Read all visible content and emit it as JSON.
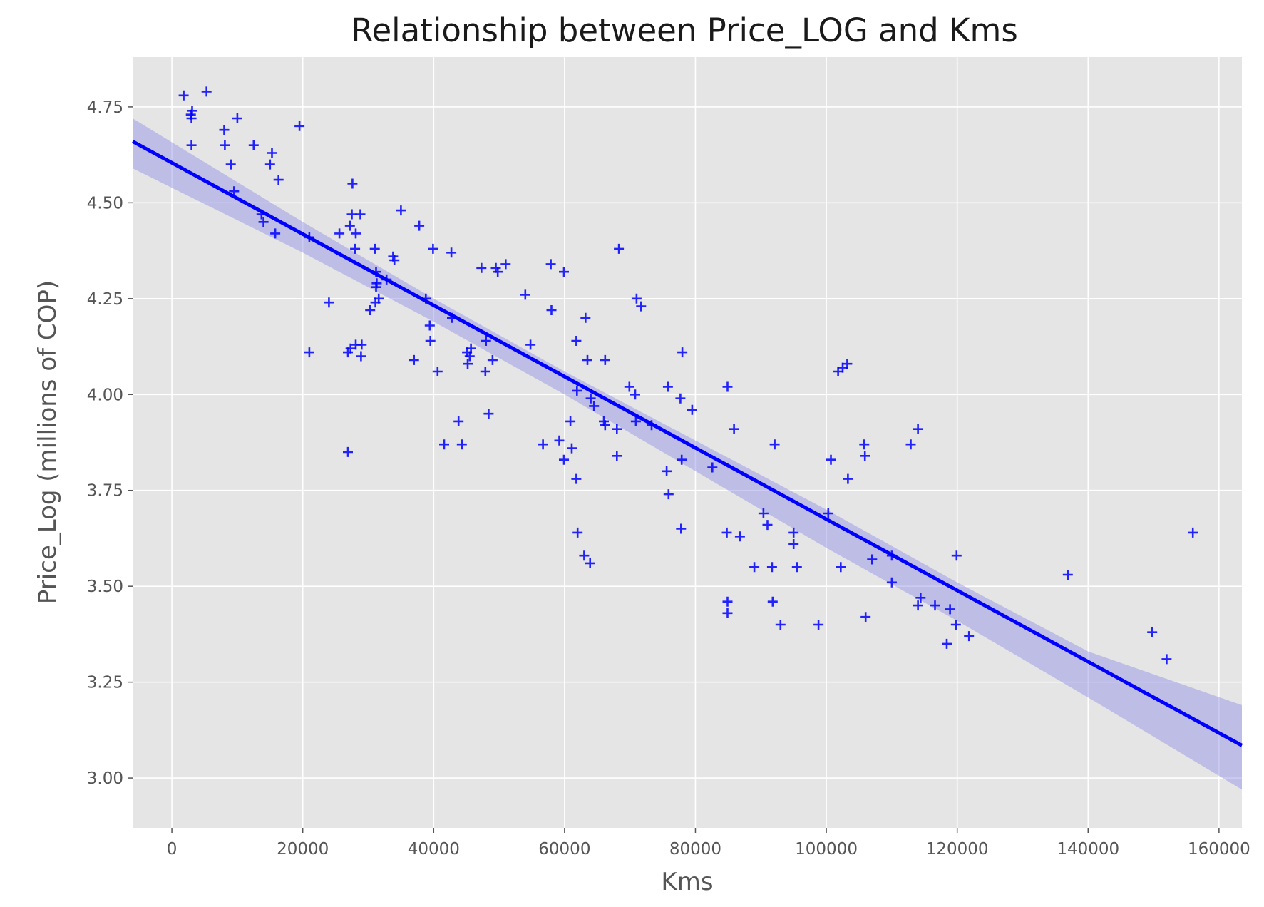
{
  "chart_data": {
    "type": "scatter",
    "title": "Relationship between Price_LOG and Kms",
    "xlabel": "Kms",
    "ylabel": "Price_Log (millions of COP)",
    "xlim": [
      -6000,
      163500
    ],
    "ylim": [
      2.87,
      4.88
    ],
    "xticks": [
      0,
      20000,
      40000,
      60000,
      80000,
      100000,
      120000,
      140000,
      160000
    ],
    "yticks": [
      3.0,
      3.25,
      3.5,
      3.75,
      4.0,
      4.25,
      4.5,
      4.75
    ],
    "grid": true,
    "marker": "+",
    "colors": {
      "points": "#0000ff",
      "line": "#0000ff",
      "band": "#8c8ce6",
      "background": "#e5e5e5",
      "grid": "#ffffff"
    },
    "regression": {
      "x": [
        -6000,
        163500
      ],
      "y": [
        4.66,
        3.085
      ]
    },
    "confidence_band": {
      "x": [
        -6000,
        20000,
        40000,
        60000,
        80000,
        100000,
        120000,
        140000,
        163500
      ],
      "lower": [
        4.59,
        4.37,
        4.19,
        4.0,
        3.8,
        3.6,
        3.41,
        3.21,
        2.97
      ],
      "upper": [
        4.72,
        4.45,
        4.25,
        4.06,
        3.88,
        3.7,
        3.51,
        3.33,
        3.19
      ]
    },
    "points": [
      [
        1800,
        4.78
      ],
      [
        5300,
        4.79
      ],
      [
        2900,
        4.73
      ],
      [
        3000,
        4.72
      ],
      [
        3100,
        4.74
      ],
      [
        3000,
        4.65
      ],
      [
        8000,
        4.69
      ],
      [
        10000,
        4.72
      ],
      [
        8100,
        4.65
      ],
      [
        9000,
        4.6
      ],
      [
        9500,
        4.53
      ],
      [
        12500,
        4.65
      ],
      [
        15300,
        4.63
      ],
      [
        15000,
        4.6
      ],
      [
        16300,
        4.56
      ],
      [
        19500,
        4.7
      ],
      [
        13700,
        4.47
      ],
      [
        14000,
        4.45
      ],
      [
        15800,
        4.42
      ],
      [
        21000,
        4.41
      ],
      [
        24000,
        4.24
      ],
      [
        21000,
        4.11
      ],
      [
        25600,
        4.42
      ],
      [
        27200,
        4.44
      ],
      [
        27600,
        4.55
      ],
      [
        27500,
        4.47
      ],
      [
        28800,
        4.47
      ],
      [
        28100,
        4.42
      ],
      [
        28000,
        4.38
      ],
      [
        26900,
        4.11
      ],
      [
        27300,
        4.12
      ],
      [
        28100,
        4.13
      ],
      [
        29000,
        4.13
      ],
      [
        28900,
        4.1
      ],
      [
        26900,
        3.85
      ],
      [
        30300,
        4.22
      ],
      [
        31100,
        4.24
      ],
      [
        31300,
        4.29
      ],
      [
        31200,
        4.28
      ],
      [
        31200,
        4.32
      ],
      [
        31000,
        4.38
      ],
      [
        31600,
        4.25
      ],
      [
        32800,
        4.3
      ],
      [
        33800,
        4.36
      ],
      [
        34000,
        4.35
      ],
      [
        35000,
        4.48
      ],
      [
        37800,
        4.44
      ],
      [
        38800,
        4.25
      ],
      [
        39400,
        4.18
      ],
      [
        39500,
        4.14
      ],
      [
        39900,
        4.38
      ],
      [
        37000,
        4.09
      ],
      [
        40600,
        4.06
      ],
      [
        42700,
        4.37
      ],
      [
        42800,
        4.2
      ],
      [
        41600,
        3.87
      ],
      [
        43800,
        3.93
      ],
      [
        44300,
        3.87
      ],
      [
        45100,
        4.11
      ],
      [
        45200,
        4.08
      ],
      [
        45500,
        4.1
      ],
      [
        45700,
        4.12
      ],
      [
        47300,
        4.33
      ],
      [
        49500,
        4.33
      ],
      [
        49800,
        4.32
      ],
      [
        51000,
        4.34
      ],
      [
        48000,
        4.14
      ],
      [
        49000,
        4.09
      ],
      [
        47900,
        4.06
      ],
      [
        48400,
        3.95
      ],
      [
        54000,
        4.26
      ],
      [
        54800,
        4.13
      ],
      [
        57900,
        4.34
      ],
      [
        59900,
        4.32
      ],
      [
        58000,
        4.22
      ],
      [
        56700,
        3.87
      ],
      [
        59200,
        3.88
      ],
      [
        59900,
        3.83
      ],
      [
        60900,
        3.93
      ],
      [
        61100,
        3.86
      ],
      [
        61800,
        4.14
      ],
      [
        61900,
        4.01
      ],
      [
        63200,
        4.2
      ],
      [
        63500,
        4.09
      ],
      [
        64000,
        3.99
      ],
      [
        64500,
        3.97
      ],
      [
        66000,
        3.93
      ],
      [
        66200,
        3.92
      ],
      [
        66200,
        4.09
      ],
      [
        61800,
        3.78
      ],
      [
        62000,
        3.64
      ],
      [
        63000,
        3.58
      ],
      [
        63900,
        3.56
      ],
      [
        68000,
        3.91
      ],
      [
        68000,
        3.84
      ],
      [
        68300,
        4.38
      ],
      [
        69900,
        4.02
      ],
      [
        70800,
        4.0
      ],
      [
        71000,
        4.25
      ],
      [
        71700,
        4.23
      ],
      [
        70900,
        3.93
      ],
      [
        73300,
        3.92
      ],
      [
        75600,
        3.8
      ],
      [
        75800,
        4.02
      ],
      [
        75900,
        3.74
      ],
      [
        77700,
        3.99
      ],
      [
        78000,
        4.11
      ],
      [
        77900,
        3.83
      ],
      [
        77800,
        3.65
      ],
      [
        79500,
        3.96
      ],
      [
        82600,
        3.81
      ],
      [
        84900,
        4.02
      ],
      [
        85900,
        3.91
      ],
      [
        84800,
        3.64
      ],
      [
        86800,
        3.63
      ],
      [
        84900,
        3.46
      ],
      [
        84900,
        3.43
      ],
      [
        89000,
        3.55
      ],
      [
        91700,
        3.55
      ],
      [
        90400,
        3.69
      ],
      [
        91000,
        3.66
      ],
      [
        92100,
        3.87
      ],
      [
        91800,
        3.46
      ],
      [
        93000,
        3.4
      ],
      [
        95000,
        3.64
      ],
      [
        95000,
        3.61
      ],
      [
        95500,
        3.55
      ],
      [
        98800,
        3.4
      ],
      [
        100300,
        3.69
      ],
      [
        100700,
        3.83
      ],
      [
        101800,
        4.06
      ],
      [
        102500,
        4.07
      ],
      [
        103200,
        4.08
      ],
      [
        103300,
        3.78
      ],
      [
        102200,
        3.55
      ],
      [
        105800,
        3.87
      ],
      [
        105900,
        3.84
      ],
      [
        106000,
        3.42
      ],
      [
        107000,
        3.57
      ],
      [
        110000,
        3.58
      ],
      [
        110000,
        3.51
      ],
      [
        112900,
        3.87
      ],
      [
        114000,
        3.91
      ],
      [
        114000,
        3.45
      ],
      [
        114400,
        3.47
      ],
      [
        116600,
        3.45
      ],
      [
        118900,
        3.44
      ],
      [
        118400,
        3.35
      ],
      [
        119900,
        3.58
      ],
      [
        119800,
        3.4
      ],
      [
        121800,
        3.37
      ],
      [
        136900,
        3.53
      ],
      [
        149800,
        3.38
      ],
      [
        152000,
        3.31
      ],
      [
        156000,
        3.64
      ]
    ]
  }
}
